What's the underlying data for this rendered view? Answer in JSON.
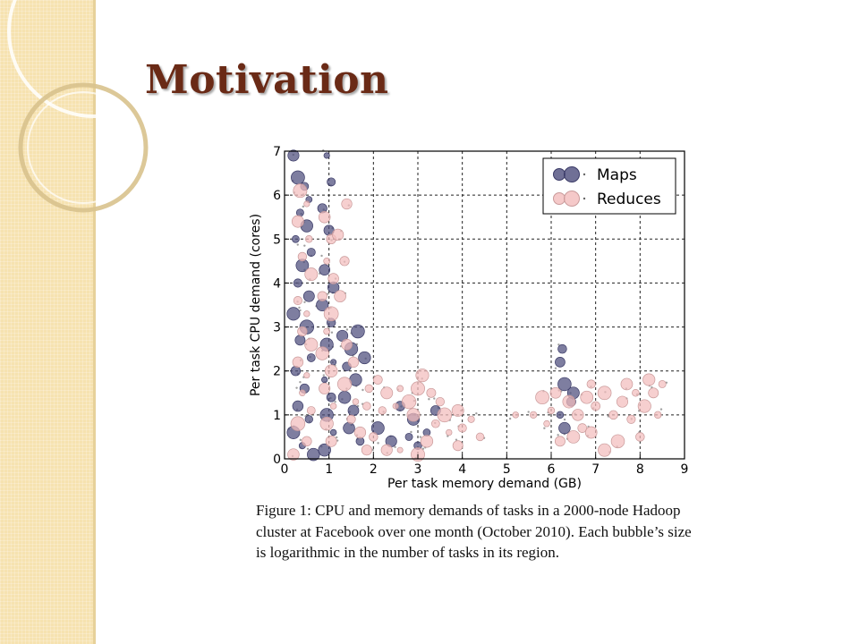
{
  "slide": {
    "title": "Motivation",
    "caption": "Figure 1: CPU and memory demands of tasks in a 2000-node Hadoop cluster at Facebook over one month (October 2010). Each bubble’s size is logarithmic in the number of tasks in its region."
  },
  "colors": {
    "sidebar": "#f6e2b0",
    "title": "#6a2a16",
    "maps": "#4c4c7c",
    "reduces": "#f2bcbc"
  },
  "chart_data": {
    "type": "scatter",
    "xlabel": "Per task memory demand (GB)",
    "ylabel": "Per task CPU demand (cores)",
    "xlim": [
      0,
      9
    ],
    "ylim": [
      0,
      7
    ],
    "x_ticks": [
      "0",
      "1",
      "2",
      "3",
      "4",
      "5",
      "6",
      "7",
      "8",
      "9"
    ],
    "y_ticks": [
      "0",
      "1",
      "2",
      "3",
      "4",
      "5",
      "6",
      "7"
    ],
    "grid": true,
    "legend_position": "top-right",
    "series": [
      {
        "name": "Maps",
        "color": "#4c4c7c",
        "points": [
          [
            0.2,
            6.9
          ],
          [
            0.3,
            6.4
          ],
          [
            0.45,
            6.2
          ],
          [
            0.55,
            5.9
          ],
          [
            0.35,
            5.6
          ],
          [
            0.5,
            5.3
          ],
          [
            0.25,
            5.0
          ],
          [
            0.6,
            4.7
          ],
          [
            0.4,
            4.4
          ],
          [
            0.3,
            4.0
          ],
          [
            0.55,
            3.7
          ],
          [
            0.2,
            3.3
          ],
          [
            0.5,
            3.0
          ],
          [
            0.35,
            2.7
          ],
          [
            0.6,
            2.3
          ],
          [
            0.25,
            2.0
          ],
          [
            0.45,
            1.6
          ],
          [
            0.3,
            1.2
          ],
          [
            0.55,
            0.9
          ],
          [
            0.2,
            0.6
          ],
          [
            0.4,
            0.3
          ],
          [
            0.65,
            0.1
          ],
          [
            0.95,
            6.9
          ],
          [
            1.05,
            6.3
          ],
          [
            0.85,
            5.7
          ],
          [
            1.0,
            5.2
          ],
          [
            0.9,
            4.3
          ],
          [
            1.1,
            3.9
          ],
          [
            0.85,
            3.5
          ],
          [
            1.05,
            3.1
          ],
          [
            0.95,
            2.6
          ],
          [
            1.1,
            2.2
          ],
          [
            0.9,
            1.8
          ],
          [
            1.05,
            1.4
          ],
          [
            0.95,
            1.0
          ],
          [
            1.1,
            0.6
          ],
          [
            0.9,
            0.2
          ],
          [
            1.3,
            2.8
          ],
          [
            1.5,
            2.5
          ],
          [
            1.4,
            2.1
          ],
          [
            1.6,
            1.8
          ],
          [
            1.35,
            1.4
          ],
          [
            1.55,
            1.1
          ],
          [
            1.45,
            0.7
          ],
          [
            1.7,
            0.4
          ],
          [
            1.65,
            2.9
          ],
          [
            1.8,
            2.3
          ],
          [
            2.1,
            0.7
          ],
          [
            2.4,
            0.4
          ],
          [
            2.6,
            1.2
          ],
          [
            2.9,
            0.9
          ],
          [
            3.0,
            0.3
          ],
          [
            3.2,
            0.6
          ],
          [
            3.4,
            1.1
          ],
          [
            2.8,
            0.5
          ],
          [
            6.25,
            2.5
          ],
          [
            6.2,
            2.2
          ],
          [
            6.3,
            1.7
          ],
          [
            6.45,
            1.3
          ],
          [
            6.2,
            1.0
          ],
          [
            6.3,
            0.7
          ],
          [
            6.5,
            1.5
          ]
        ]
      },
      {
        "name": "Reduces",
        "color": "#f2bcbc",
        "points": [
          [
            0.35,
            6.1
          ],
          [
            0.5,
            5.8
          ],
          [
            0.3,
            5.4
          ],
          [
            0.55,
            5.0
          ],
          [
            0.4,
            4.6
          ],
          [
            0.6,
            4.2
          ],
          [
            0.3,
            3.6
          ],
          [
            0.5,
            3.3
          ],
          [
            0.4,
            2.9
          ],
          [
            0.6,
            2.6
          ],
          [
            0.3,
            2.2
          ],
          [
            0.5,
            1.9
          ],
          [
            0.4,
            1.5
          ],
          [
            0.6,
            1.1
          ],
          [
            0.3,
            0.8
          ],
          [
            0.5,
            0.4
          ],
          [
            0.2,
            0.1
          ],
          [
            0.9,
            5.5
          ],
          [
            1.05,
            5.0
          ],
          [
            0.95,
            4.5
          ],
          [
            1.1,
            4.1
          ],
          [
            0.85,
            3.7
          ],
          [
            1.05,
            3.3
          ],
          [
            0.95,
            2.9
          ],
          [
            0.85,
            2.4
          ],
          [
            1.05,
            2.0
          ],
          [
            0.9,
            1.6
          ],
          [
            1.1,
            1.2
          ],
          [
            0.95,
            0.8
          ],
          [
            1.05,
            0.4
          ],
          [
            1.4,
            5.8
          ],
          [
            1.2,
            5.1
          ],
          [
            1.35,
            4.5
          ],
          [
            1.25,
            3.7
          ],
          [
            1.4,
            2.6
          ],
          [
            1.55,
            2.2
          ],
          [
            1.35,
            1.7
          ],
          [
            1.6,
            1.3
          ],
          [
            1.5,
            0.9
          ],
          [
            1.7,
            0.6
          ],
          [
            1.85,
            0.2
          ],
          [
            1.9,
            1.6
          ],
          [
            1.85,
            1.2
          ],
          [
            2.1,
            1.8
          ],
          [
            2.3,
            1.5
          ],
          [
            2.2,
            1.1
          ],
          [
            2.5,
            1.2
          ],
          [
            2.6,
            1.6
          ],
          [
            2.8,
            1.3
          ],
          [
            3.0,
            1.6
          ],
          [
            3.1,
            1.9
          ],
          [
            2.9,
            1.0
          ],
          [
            3.3,
            1.5
          ],
          [
            3.5,
            1.3
          ],
          [
            3.4,
            0.8
          ],
          [
            3.6,
            1.0
          ],
          [
            3.7,
            0.6
          ],
          [
            3.2,
            0.4
          ],
          [
            2.6,
            0.2
          ],
          [
            2.0,
            0.5
          ],
          [
            2.3,
            0.2
          ],
          [
            3.0,
            0.1
          ],
          [
            3.9,
            1.1
          ],
          [
            4.0,
            0.7
          ],
          [
            4.2,
            0.9
          ],
          [
            3.9,
            0.3
          ],
          [
            4.4,
            0.5
          ],
          [
            5.2,
            1.0
          ],
          [
            5.6,
            1.0
          ],
          [
            5.8,
            1.4
          ],
          [
            6.0,
            1.1
          ],
          [
            5.9,
            0.8
          ],
          [
            6.1,
            1.5
          ],
          [
            6.4,
            1.3
          ],
          [
            6.6,
            1.0
          ],
          [
            6.8,
            1.4
          ],
          [
            6.7,
            0.7
          ],
          [
            7.0,
            1.2
          ],
          [
            7.2,
            1.5
          ],
          [
            7.4,
            1.0
          ],
          [
            7.6,
            1.3
          ],
          [
            7.8,
            0.9
          ],
          [
            7.9,
            1.5
          ],
          [
            8.1,
            1.2
          ],
          [
            8.3,
            1.5
          ],
          [
            8.4,
            1.0
          ],
          [
            8.0,
            0.5
          ],
          [
            7.5,
            0.4
          ],
          [
            7.2,
            0.2
          ],
          [
            6.9,
            0.6
          ],
          [
            6.5,
            0.5
          ],
          [
            6.2,
            0.4
          ],
          [
            8.5,
            1.7
          ],
          [
            8.2,
            1.8
          ],
          [
            7.7,
            1.7
          ],
          [
            6.9,
            1.7
          ]
        ]
      }
    ]
  }
}
